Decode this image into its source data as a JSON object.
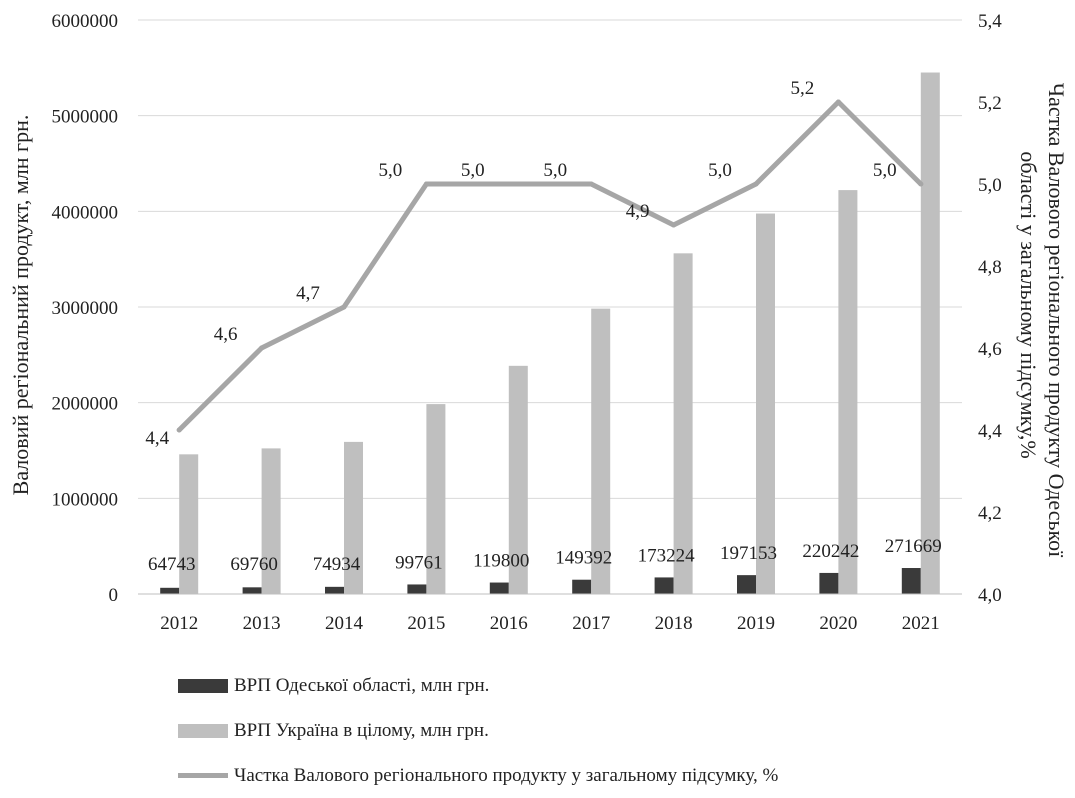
{
  "chart_data": {
    "type": "bar",
    "categories": [
      "2012",
      "2013",
      "2014",
      "2015",
      "2016",
      "2017",
      "2018",
      "2019",
      "2020",
      "2021"
    ],
    "series": [
      {
        "name": "ВРП Одеської області, млн грн.",
        "kind": "bar",
        "axis": "left",
        "color": "#3a3a3a",
        "values": [
          64743,
          69760,
          74934,
          99761,
          119800,
          149392,
          173224,
          197153,
          220242,
          271669
        ],
        "labels": [
          "64743",
          "69760",
          "74934",
          "99761",
          "119800",
          "149392",
          "173224",
          "197153",
          "220242",
          "271669"
        ]
      },
      {
        "name": "ВРП Україна в цілому, млн грн.",
        "kind": "bar",
        "axis": "left",
        "color": "#bfbfbf",
        "values": [
          1460000,
          1522000,
          1590000,
          1985000,
          2385000,
          2983000,
          3561000,
          3977000,
          4222000,
          5451000
        ]
      },
      {
        "name": "Частка Валового регіонального продукту у загальному підсумку,  %",
        "kind": "line",
        "axis": "right",
        "color": "#a6a6a6",
        "values": [
          4.4,
          4.6,
          4.7,
          5.0,
          5.0,
          5.0,
          4.9,
          5.0,
          5.2,
          5.0
        ],
        "labels": [
          "4,4",
          "4,6",
          "4,7",
          "5,0",
          "5,0",
          "5,0",
          "4,9",
          "5,0",
          "5,2",
          "5,0"
        ]
      }
    ],
    "y_left": {
      "label": "Валовий регіональний продукт, млн грн.",
      "ylim": [
        0,
        6000000
      ],
      "ticks": [
        "0",
        "1000000",
        "2000000",
        "3000000",
        "4000000",
        "5000000",
        "6000000"
      ]
    },
    "y_right": {
      "label": "Частка Валового регіонального продукту Одеської області у загальному підсумку,%",
      "label_lines": [
        "Частка Валового регіонального продукту Одеської",
        "області у загальному підсумку,%"
      ],
      "ylim": [
        4.0,
        5.4
      ],
      "ticks": [
        "4,0",
        "4,2",
        "4,4",
        "4,6",
        "4,8",
        "5,0",
        "5,2",
        "5,4"
      ]
    },
    "grid": true,
    "legend_position": "bottom"
  }
}
